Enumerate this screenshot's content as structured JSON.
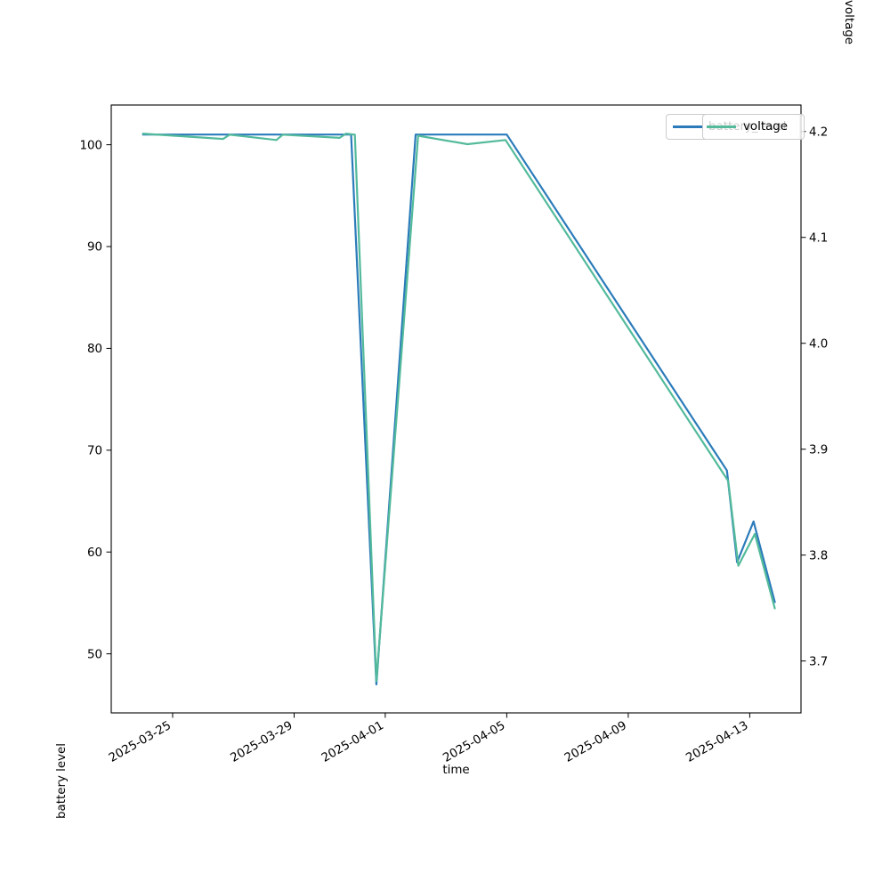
{
  "chart_data": {
    "type": "line",
    "title": "",
    "xlabel": "time",
    "grid": false,
    "legend": {
      "location": "upper right",
      "frame": true,
      "entries": [
        "battery_level",
        "voltage"
      ]
    },
    "x_tick_labels": [
      "2025-03-25",
      "2025-03-29",
      "2025-04-01",
      "2025-04-05",
      "2025-04-09",
      "2025-04-13"
    ],
    "x_range": [
      "2025-03-22T23:30",
      "2025-04-14T16:30"
    ],
    "left_axis": {
      "label": "battery level",
      "ticks": [
        50,
        60,
        70,
        80,
        90,
        100
      ],
      "range": [
        44.2,
        103.9
      ],
      "tick_decimals": 0
    },
    "right_axis": {
      "label": "voltage",
      "ticks": [
        3.7,
        3.8,
        3.9,
        4.0,
        4.1,
        4.2
      ],
      "range": [
        3.651,
        4.225
      ],
      "tick_decimals": 1
    },
    "series": [
      {
        "name": "battery_level",
        "axis": "left",
        "color": "#2b7bba",
        "points": [
          [
            "2025-03-24T00:00",
            101
          ],
          [
            "2025-03-30T21:00",
            101
          ],
          [
            "2025-03-31T17:00",
            47
          ],
          [
            "2025-04-02T00:00",
            101
          ],
          [
            "2025-04-05T00:00",
            101
          ],
          [
            "2025-04-12T06:00",
            68
          ],
          [
            "2025-04-12T14:00",
            59
          ],
          [
            "2025-04-13T03:00",
            63
          ],
          [
            "2025-04-13T20:00",
            55
          ]
        ]
      },
      {
        "name": "voltage",
        "axis": "right",
        "color": "#53ba9b",
        "points": [
          [
            "2025-03-24T00:00",
            4.198
          ],
          [
            "2025-03-26T16:00",
            4.193
          ],
          [
            "2025-03-26T21:00",
            4.197
          ],
          [
            "2025-03-28T10:00",
            4.192
          ],
          [
            "2025-03-28T15:00",
            4.197
          ],
          [
            "2025-03-30T12:00",
            4.194
          ],
          [
            "2025-03-30T17:00",
            4.198
          ],
          [
            "2025-03-31T00:00",
            4.197
          ],
          [
            "2025-03-31T17:00",
            3.681
          ],
          [
            "2025-04-02T02:00",
            4.196
          ],
          [
            "2025-04-03T17:00",
            4.188
          ],
          [
            "2025-04-04T23:00",
            4.192
          ],
          [
            "2025-04-12T07:00",
            3.87
          ],
          [
            "2025-04-12T15:00",
            3.79
          ],
          [
            "2025-04-13T04:00",
            3.82
          ],
          [
            "2025-04-13T20:00",
            3.749
          ]
        ]
      }
    ]
  }
}
